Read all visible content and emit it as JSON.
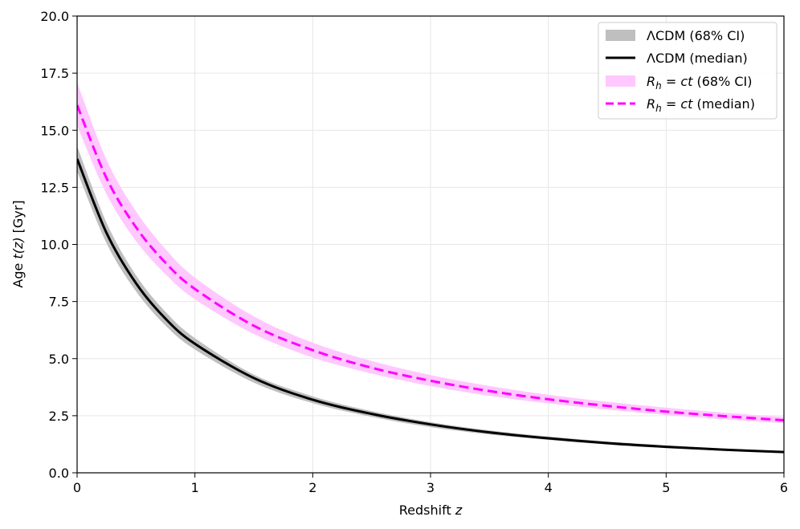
{
  "chart_data": {
    "type": "line",
    "xlabel": "Redshift",
    "xlabel_var": "z",
    "ylabel": "Age",
    "ylabel_var": "t(z)",
    "ylabel_unit": "[Gyr]",
    "xlim": [
      0,
      6
    ],
    "ylim": [
      0,
      20
    ],
    "xticks": [
      "0",
      "1",
      "2",
      "3",
      "4",
      "5",
      "6"
    ],
    "yticks": [
      "0.0",
      "2.5",
      "5.0",
      "7.5",
      "10.0",
      "12.5",
      "15.0",
      "17.5",
      "20.0"
    ],
    "grid": true,
    "legend_position": "top-right",
    "x": [
      0,
      0.25,
      0.5,
      0.75,
      1.0,
      1.5,
      2.0,
      2.5,
      3.0,
      3.5,
      4.0,
      4.5,
      5.0,
      5.5,
      6.0
    ],
    "series": [
      {
        "name": "ΛCDM (68% CI)",
        "kind": "band",
        "color": "#bfbfbf",
        "lower": [
          13.2,
          10.05,
          7.95,
          6.45,
          5.4,
          3.95,
          3.05,
          2.45,
          2.0,
          1.68,
          1.44,
          1.24,
          1.08,
          0.96,
          0.86
        ],
        "upper": [
          14.3,
          10.95,
          8.65,
          7.05,
          5.9,
          4.3,
          3.35,
          2.7,
          2.22,
          1.86,
          1.59,
          1.37,
          1.2,
          1.06,
          0.95
        ]
      },
      {
        "name": "ΛCDM (median)",
        "kind": "line",
        "color": "#000000",
        "values": [
          13.75,
          10.5,
          8.3,
          6.75,
          5.65,
          4.15,
          3.2,
          2.58,
          2.12,
          1.77,
          1.51,
          1.3,
          1.14,
          1.01,
          0.91
        ]
      },
      {
        "name": "R_h = ct (68% CI)",
        "kind": "band",
        "color": "#ffc8ff",
        "lower": [
          15.2,
          12.2,
          10.15,
          8.7,
          7.6,
          6.08,
          5.05,
          4.35,
          3.8,
          3.37,
          3.04,
          2.77,
          2.53,
          2.34,
          2.17
        ],
        "upper": [
          17.1,
          13.7,
          11.45,
          9.8,
          8.55,
          6.85,
          5.7,
          4.9,
          4.28,
          3.8,
          3.42,
          3.11,
          2.85,
          2.63,
          2.44
        ]
      },
      {
        "name": "R_h = ct (median)",
        "kind": "dashed-line",
        "color": "#ff00ff",
        "values": [
          16.1,
          12.9,
          10.75,
          9.2,
          8.05,
          6.44,
          5.37,
          4.6,
          4.03,
          3.58,
          3.22,
          2.93,
          2.68,
          2.48,
          2.3
        ]
      }
    ],
    "legend": [
      {
        "label": "ΛCDM (68% CI)",
        "sym": "band",
        "color": "#bfbfbf"
      },
      {
        "label": "ΛCDM (median)",
        "sym": "line",
        "color": "#000000"
      },
      {
        "label_math": "R",
        "label_sub": "h",
        "label_rest": " = ",
        "label_math2": "ct",
        "label_tail": " (68% CI)",
        "sym": "band",
        "color": "#ffc8ff"
      },
      {
        "label_math": "R",
        "label_sub": "h",
        "label_rest": " = ",
        "label_math2": "ct",
        "label_tail": " (median)",
        "sym": "dashed",
        "color": "#ff00ff"
      }
    ]
  }
}
